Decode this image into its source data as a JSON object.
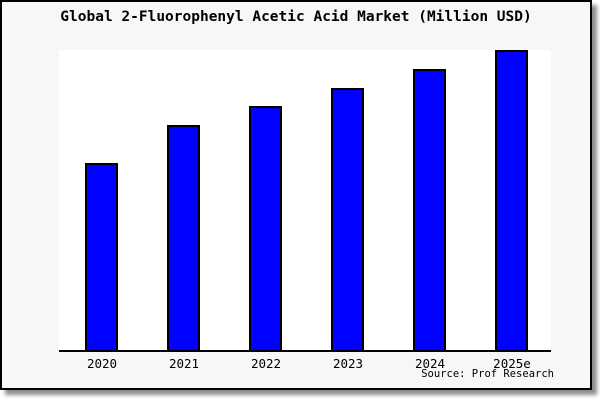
{
  "title": "Global 2-Fluorophenyl Acetic Acid Market (Million USD)",
  "source": "Source: Prof Research",
  "frame": {
    "outer_background": "#ffffff",
    "panel_background": "#f7f7f7",
    "panel_border_color": "#000000",
    "shadow_color": "#737373"
  },
  "chart_data": {
    "type": "bar",
    "title": "Global 2-Fluorophenyl Acetic Acid Market (Million USD)",
    "categories": [
      "2020",
      "2021",
      "2022",
      "2023",
      "2024",
      "2025e"
    ],
    "values": [
      100,
      120,
      130,
      140,
      150,
      160
    ],
    "value_note": "relative heights estimated from bars; chart displays no y-axis, gridlines or data labels (2020 indexed to 100)",
    "xlabel": "",
    "ylabel": "",
    "ylim": [
      0,
      160
    ],
    "grid": false,
    "legend": false,
    "bar_color": "#0101ff",
    "bar_border_color": "#000000",
    "plot_background": "#ffffff",
    "axis_line_color": "#000000"
  }
}
